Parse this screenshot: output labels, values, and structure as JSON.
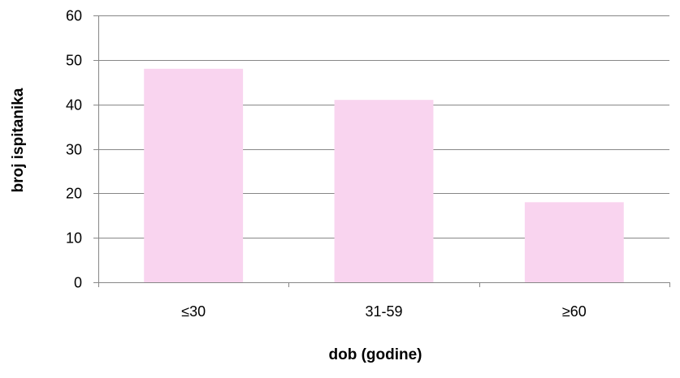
{
  "chart_data": {
    "type": "bar",
    "categories": [
      "≤30",
      "31-59",
      "≥60"
    ],
    "values": [
      48,
      41,
      18
    ],
    "title": "",
    "xlabel": "dob (godine)",
    "ylabel": "broj ispitanika",
    "ylim": [
      0,
      60
    ],
    "yticks": [
      "0",
      "10",
      "20",
      "30",
      "40",
      "50",
      "60"
    ],
    "grid": true,
    "legend": "none",
    "colors": {
      "bar": "#f9d4ef",
      "gridline": "#878787",
      "axis": "#878787"
    }
  }
}
